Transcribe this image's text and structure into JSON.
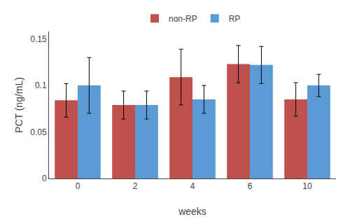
{
  "chart_data": {
    "type": "bar",
    "categories": [
      "0",
      "2",
      "4",
      "6",
      "10"
    ],
    "series": [
      {
        "name": "non-RP",
        "color": "#C0504D",
        "values": [
          0.084,
          0.079,
          0.109,
          0.123,
          0.085
        ],
        "errors": [
          0.018,
          0.015,
          0.03,
          0.02,
          0.018
        ]
      },
      {
        "name": "RP",
        "color": "#5B9BD5",
        "values": [
          0.1,
          0.079,
          0.085,
          0.122,
          0.1
        ],
        "errors": [
          0.03,
          0.015,
          0.015,
          0.02,
          0.012
        ]
      }
    ],
    "xlabel": "weeks",
    "ylabel": "PCT (ng/mL)",
    "ylim": [
      0,
      0.158
    ],
    "yticks": [
      0,
      0.05,
      0.1,
      0.15
    ],
    "grid": false,
    "legend": "top"
  }
}
